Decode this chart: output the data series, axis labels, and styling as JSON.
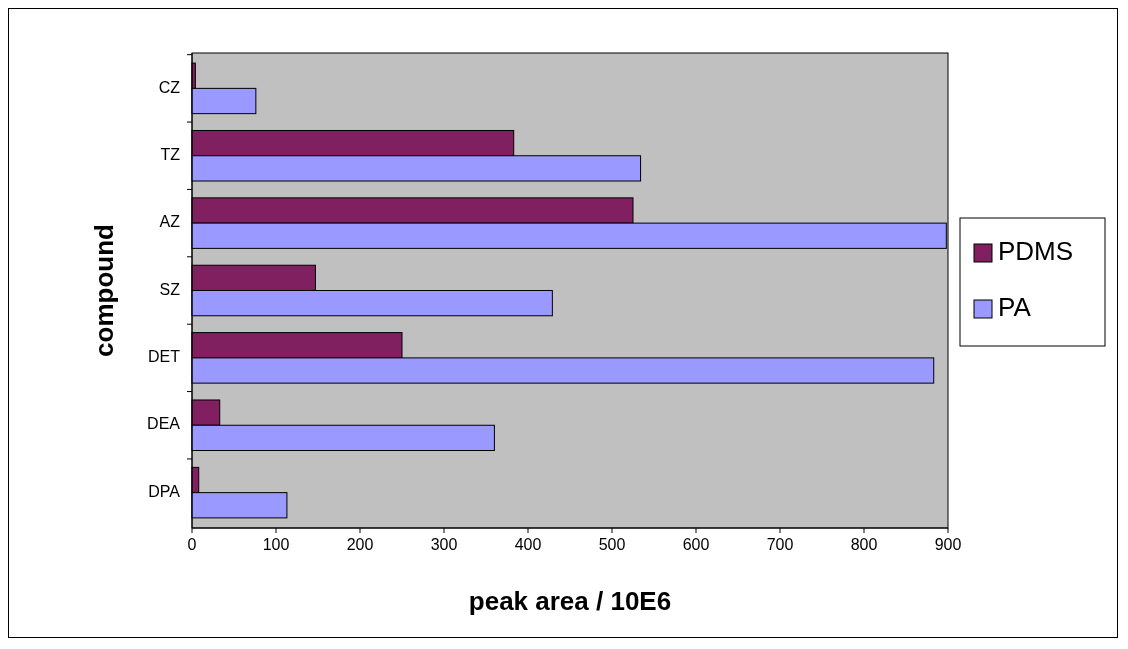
{
  "chart_data": {
    "type": "bar",
    "orientation": "horizontal",
    "xlabel": "peak area / 10E6",
    "ylabel": "compound",
    "categories": [
      "CZ",
      "TZ",
      "AZ",
      "SZ",
      "DET",
      "DEA",
      "DPA"
    ],
    "series": [
      {
        "name": "PDMS",
        "color": "#802060",
        "values": [
          4,
          383,
          525,
          147,
          250,
          33,
          8
        ]
      },
      {
        "name": "PA",
        "color": "#9999ff",
        "values": [
          76,
          534,
          898,
          429,
          883,
          360,
          113
        ]
      }
    ],
    "xlim": [
      0,
      900
    ],
    "xticks": [
      0,
      100,
      200,
      300,
      400,
      500,
      600,
      700,
      800,
      900
    ],
    "legend": "right",
    "grid": false
  }
}
